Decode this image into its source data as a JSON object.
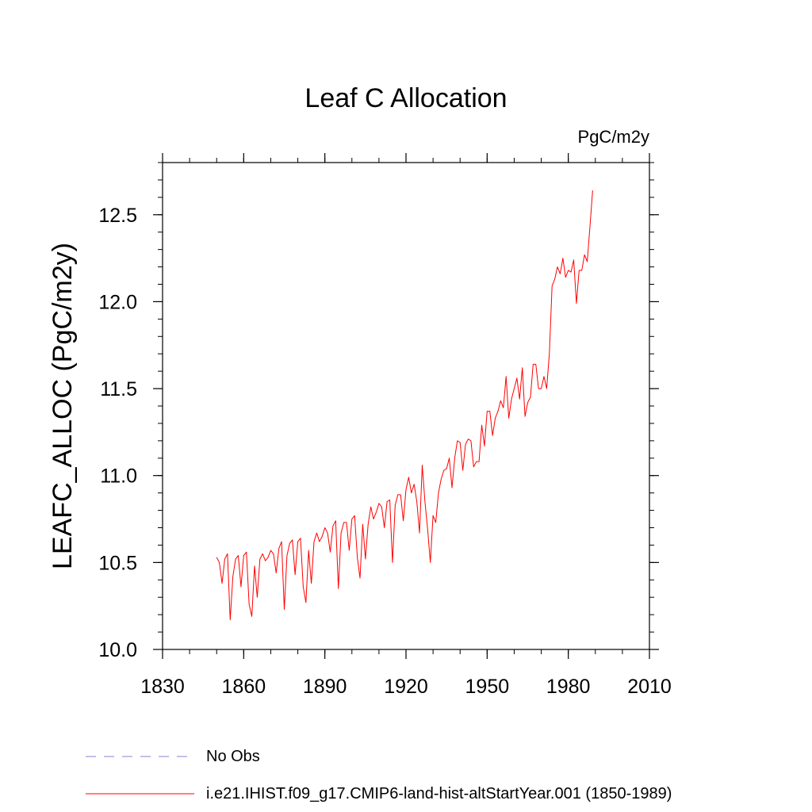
{
  "chart_data": {
    "type": "line",
    "title": "Leaf C Allocation",
    "units_label": "PgC/m2y",
    "xlabel": "",
    "ylabel": "LEAFC_ALLOC  (PgC/m2y)",
    "xlim": [
      1830,
      2010
    ],
    "ylim": [
      10.0,
      12.8
    ],
    "x_ticks": [
      1830,
      1860,
      1890,
      1920,
      1950,
      1980,
      2010
    ],
    "x_tick_labels": [
      "1830",
      "1860",
      "1890",
      "1920",
      "1950",
      "1980",
      "2010"
    ],
    "y_ticks": [
      10.0,
      10.5,
      11.0,
      11.5,
      12.0,
      12.5
    ],
    "y_tick_labels": [
      "10.0",
      "10.5",
      "11.0",
      "11.5",
      "12.0",
      "12.5"
    ],
    "x_minor_step": 10,
    "y_minor_step": 0.1,
    "grid": false,
    "legend_position": "bottom-left, below plot",
    "legend": [
      {
        "label": "No Obs",
        "style": "dashed",
        "color": "#8a7fd0"
      },
      {
        "label": "i.e21.IHIST.f09_g17.CMIP6-land-hist-altStartYear.001 (1850-1989)",
        "style": "solid",
        "color": "#ff0000"
      }
    ],
    "series": [
      {
        "name": "i.e21.IHIST.f09_g17.CMIP6-land-hist-altStartYear.001 (1850-1989)",
        "color": "#ff0000",
        "x": [
          1850,
          1851,
          1852,
          1853,
          1854,
          1855,
          1856,
          1857,
          1858,
          1859,
          1860,
          1861,
          1862,
          1863,
          1864,
          1865,
          1866,
          1867,
          1868,
          1869,
          1870,
          1871,
          1872,
          1873,
          1874,
          1875,
          1876,
          1877,
          1878,
          1879,
          1880,
          1881,
          1882,
          1883,
          1884,
          1885,
          1886,
          1887,
          1888,
          1889,
          1890,
          1891,
          1892,
          1893,
          1894,
          1895,
          1896,
          1897,
          1898,
          1899,
          1900,
          1901,
          1902,
          1903,
          1904,
          1905,
          1906,
          1907,
          1908,
          1909,
          1910,
          1911,
          1912,
          1913,
          1914,
          1915,
          1916,
          1917,
          1918,
          1919,
          1920,
          1921,
          1922,
          1923,
          1924,
          1925,
          1926,
          1927,
          1928,
          1929,
          1930,
          1931,
          1932,
          1933,
          1934,
          1935,
          1936,
          1937,
          1938,
          1939,
          1940,
          1941,
          1942,
          1943,
          1944,
          1945,
          1946,
          1947,
          1948,
          1949,
          1950,
          1951,
          1952,
          1953,
          1954,
          1955,
          1956,
          1957,
          1958,
          1959,
          1960,
          1961,
          1962,
          1963,
          1964,
          1965,
          1966,
          1967,
          1968,
          1969,
          1970,
          1971,
          1972,
          1973,
          1974,
          1975,
          1976,
          1977,
          1978,
          1979,
          1980,
          1981,
          1982,
          1983,
          1984,
          1985,
          1986,
          1987,
          1988,
          1989
        ],
        "y": [
          10.53,
          10.5,
          10.38,
          10.52,
          10.55,
          10.17,
          10.42,
          10.52,
          10.54,
          10.36,
          10.54,
          10.56,
          10.26,
          10.19,
          10.48,
          10.3,
          10.52,
          10.55,
          10.51,
          10.53,
          10.57,
          10.55,
          10.44,
          10.58,
          10.62,
          10.23,
          10.54,
          10.61,
          10.63,
          10.43,
          10.62,
          10.64,
          10.36,
          10.27,
          10.57,
          10.38,
          10.62,
          10.67,
          10.62,
          10.65,
          10.7,
          10.67,
          10.56,
          10.71,
          10.74,
          10.35,
          10.67,
          10.73,
          10.73,
          10.57,
          10.75,
          10.77,
          10.53,
          10.41,
          10.72,
          10.52,
          10.72,
          10.82,
          10.75,
          10.79,
          10.84,
          10.82,
          10.7,
          10.85,
          10.86,
          10.5,
          10.83,
          10.89,
          10.89,
          10.74,
          10.92,
          10.99,
          10.9,
          10.95,
          10.85,
          10.67,
          11.06,
          10.85,
          10.69,
          10.5,
          10.77,
          10.73,
          10.9,
          10.98,
          11.03,
          11.04,
          11.1,
          10.93,
          11.1,
          11.2,
          11.19,
          11.03,
          11.18,
          11.21,
          11.2,
          11.05,
          11.08,
          11.08,
          11.29,
          11.17,
          11.37,
          11.37,
          11.23,
          11.33,
          11.37,
          11.43,
          11.39,
          11.57,
          11.33,
          11.44,
          11.5,
          11.56,
          11.44,
          11.62,
          11.34,
          11.42,
          11.45,
          11.64,
          11.64,
          11.5,
          11.5,
          11.57,
          11.5,
          11.7,
          12.09,
          12.13,
          12.2,
          12.16,
          12.25,
          12.14,
          12.18,
          12.17,
          12.24,
          11.99,
          12.18,
          12.18,
          12.27,
          12.23,
          12.43,
          12.64
        ]
      }
    ]
  }
}
